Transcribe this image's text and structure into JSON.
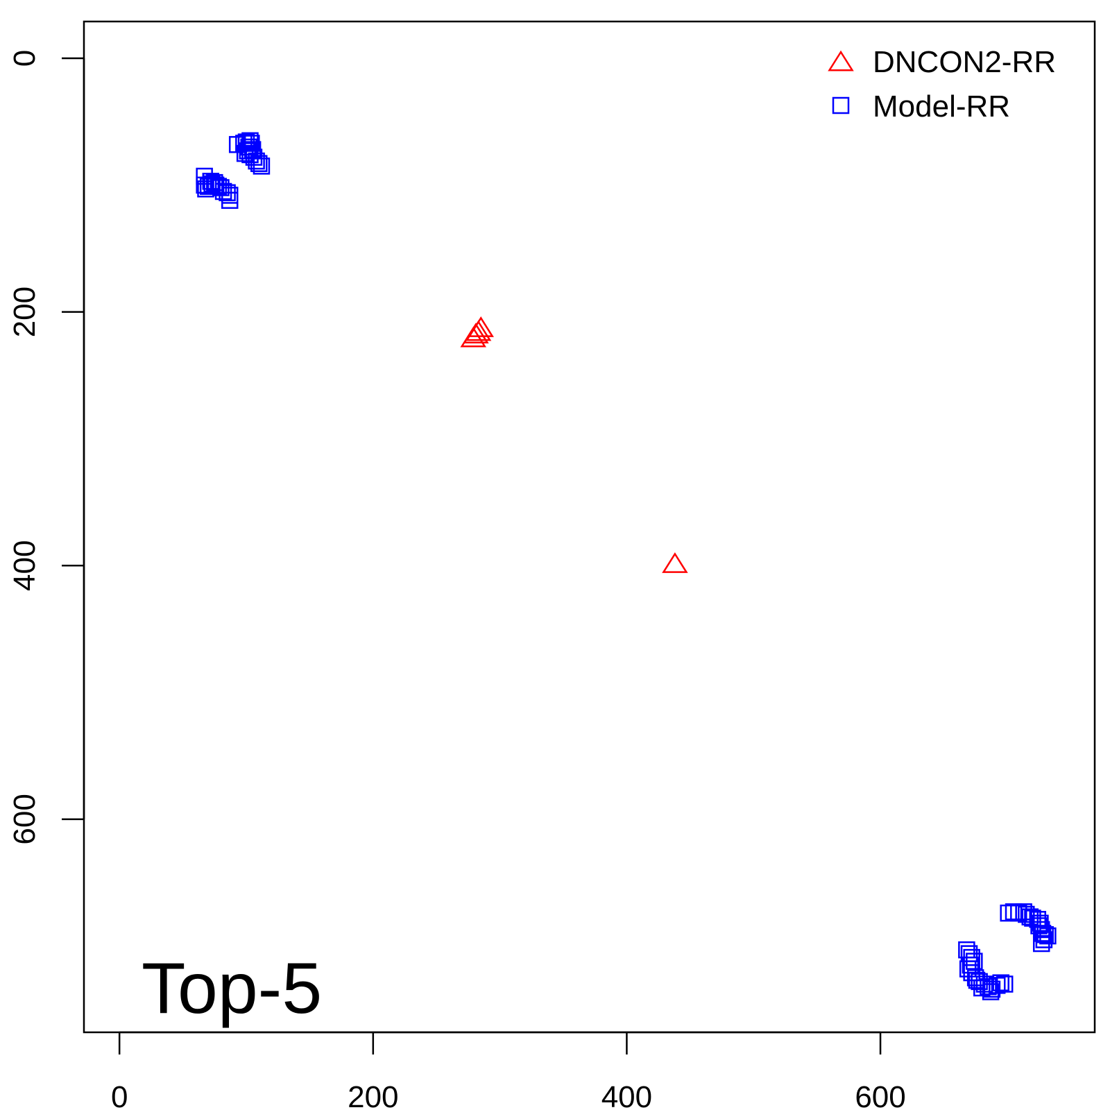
{
  "chart_data": {
    "type": "scatter",
    "title": "",
    "xlabel": "",
    "ylabel": "",
    "annotation": "Top-5",
    "xlim": [
      -28,
      769
    ],
    "ylim": [
      -29,
      768
    ],
    "y_reversed": true,
    "grid": false,
    "legend_position": "top-right",
    "x_ticks": [
      0,
      200,
      400,
      600
    ],
    "y_ticks": [
      0,
      200,
      400,
      600
    ],
    "series": [
      {
        "name": "DNCON2-RR",
        "marker": "triangle",
        "color": "#ff0000",
        "points": [
          [
            279,
            221
          ],
          [
            281,
            218
          ],
          [
            283,
            216
          ],
          [
            285,
            213
          ],
          [
            438,
            399
          ]
        ]
      },
      {
        "name": "Model-RR",
        "marker": "square",
        "color": "#0000ff",
        "points": [
          [
            93,
            68
          ],
          [
            98,
            67
          ],
          [
            100,
            66
          ],
          [
            103,
            65
          ],
          [
            104,
            67
          ],
          [
            102,
            70
          ],
          [
            101,
            73
          ],
          [
            103,
            76
          ],
          [
            106,
            78
          ],
          [
            108,
            81
          ],
          [
            110,
            83
          ],
          [
            112,
            85
          ],
          [
            105,
            72
          ],
          [
            99,
            75
          ],
          [
            67,
            93
          ],
          [
            67,
            100
          ],
          [
            70,
            101
          ],
          [
            73,
            99
          ],
          [
            75,
            98
          ],
          [
            76,
            100
          ],
          [
            78,
            101
          ],
          [
            80,
            102
          ],
          [
            82,
            105
          ],
          [
            85,
            106
          ],
          [
            87,
            108
          ],
          [
            87,
            112
          ],
          [
            72,
            97
          ],
          [
            68,
            103
          ],
          [
            701,
            674
          ],
          [
            705,
            673
          ],
          [
            709,
            674
          ],
          [
            713,
            673
          ],
          [
            715,
            675
          ],
          [
            718,
            677
          ],
          [
            720,
            678
          ],
          [
            724,
            679
          ],
          [
            726,
            682
          ],
          [
            727,
            687
          ],
          [
            728,
            690
          ],
          [
            730,
            691
          ],
          [
            732,
            692
          ],
          [
            729,
            695
          ],
          [
            727,
            698
          ],
          [
            725,
            684
          ],
          [
            668,
            703
          ],
          [
            670,
            706
          ],
          [
            672,
            709
          ],
          [
            674,
            712
          ],
          [
            671,
            715
          ],
          [
            669,
            718
          ],
          [
            672,
            721
          ],
          [
            675,
            725
          ],
          [
            678,
            728
          ],
          [
            682,
            730
          ],
          [
            685,
            732
          ],
          [
            688,
            734
          ],
          [
            692,
            731
          ],
          [
            695,
            729
          ],
          [
            698,
            730
          ],
          [
            687,
            736
          ],
          [
            680,
            733
          ],
          [
            676,
            727
          ]
        ]
      }
    ]
  }
}
